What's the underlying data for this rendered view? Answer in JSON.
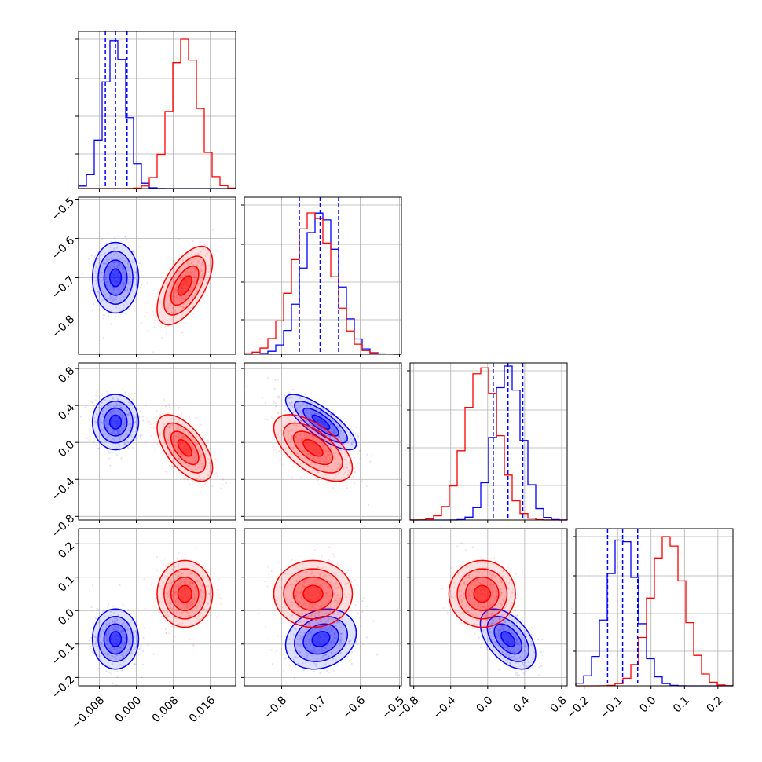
{
  "chart_data": {
    "type": "corner",
    "series": [
      {
        "name": "",
        "color": "#0000ff",
        "median": [
          -0.0045,
          -0.7,
          0.22,
          -0.085
        ],
        "std": [
          0.0025,
          0.045,
          0.15,
          0.045
        ],
        "corr": [
          [
            1,
            0,
            0,
            0
          ],
          [
            0,
            1,
            -0.8,
            0.2
          ],
          [
            0,
            -0.8,
            1,
            -0.5
          ],
          [
            0,
            0.2,
            -0.5,
            1
          ]
        ],
        "quantile_lines": true
      },
      {
        "name": "",
        "color": "#ff0000",
        "median": [
          0.0105,
          -0.72,
          -0.06,
          0.05
        ],
        "std": [
          0.003,
          0.05,
          0.18,
          0.05
        ],
        "corr": [
          [
            1,
            0.6,
            -0.6,
            0
          ],
          [
            0.6,
            1,
            -0.6,
            0
          ],
          [
            -0.6,
            -0.6,
            1,
            0
          ],
          [
            0,
            0,
            0,
            1
          ]
        ],
        "quantile_lines": false
      }
    ],
    "quantiles": [
      [
        -0.0067,
        -0.0045,
        -0.002
      ],
      [
        -0.755,
        -0.702,
        -0.655
      ],
      [
        0.06,
        0.22,
        0.38
      ],
      [
        -0.13,
        -0.085,
        -0.04
      ]
    ],
    "params": [
      {
        "range": [
          -0.0125,
          0.0215
        ],
        "ticks": [
          -0.008,
          0.0,
          0.008,
          0.016
        ],
        "tick_labels": [
          "−0.008",
          "0.000",
          "0.008",
          "0.016"
        ]
      },
      {
        "range": [
          -0.895,
          -0.495
        ],
        "ticks": [
          -0.8,
          -0.7,
          -0.6,
          -0.5
        ],
        "tick_labels": [
          "−0.8",
          "−0.7",
          "−0.6",
          "−0.5"
        ]
      },
      {
        "range": [
          -0.84,
          0.86
        ],
        "ticks": [
          -0.8,
          -0.4,
          0.0,
          0.4,
          0.8
        ],
        "tick_labels": [
          "−0.8",
          "−0.4",
          "0.0",
          "0.4",
          "0.8"
        ]
      },
      {
        "range": [
          -0.225,
          0.245
        ],
        "ticks": [
          -0.2,
          -0.1,
          0.0,
          0.1,
          0.2
        ],
        "tick_labels": [
          "−0.2",
          "−0.1",
          "0.0",
          "0.1",
          "0.2"
        ]
      }
    ],
    "diag_hist_max": [
      0.95,
      0.9,
      0.98,
      0.95
    ],
    "grid": true,
    "legend": "none",
    "title": "",
    "xlabel": "",
    "ylabel": ""
  }
}
